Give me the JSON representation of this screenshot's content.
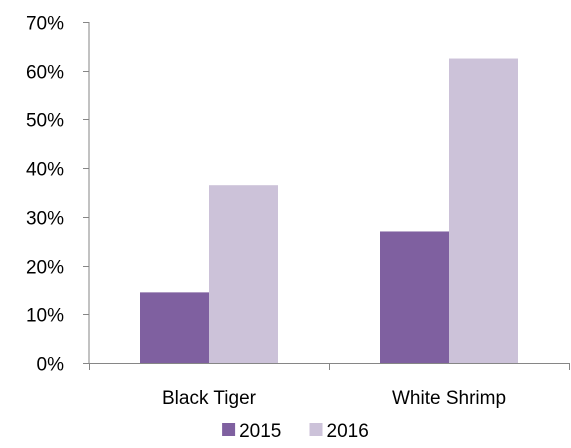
{
  "chart_data": {
    "type": "bar",
    "title": "",
    "xlabel": "",
    "ylabel": "",
    "categories": [
      "Black Tiger",
      "White Shrimp"
    ],
    "series": [
      {
        "name": "2015",
        "values": [
          14.5,
          27
        ],
        "color": "#7f60a0"
      },
      {
        "name": "2016",
        "values": [
          36.5,
          62.5
        ],
        "color": "#ccc2d9"
      }
    ],
    "y_unit": "%",
    "ylim": [
      0,
      70
    ],
    "y_ticks": [
      0,
      10,
      20,
      30,
      40,
      50,
      60,
      70
    ],
    "y_tick_labels": [
      "0%",
      "10%",
      "20%",
      "30%",
      "40%",
      "50%",
      "60%",
      "70%"
    ],
    "grid": false,
    "legend_position": "bottom",
    "axis_color": "#868686"
  }
}
